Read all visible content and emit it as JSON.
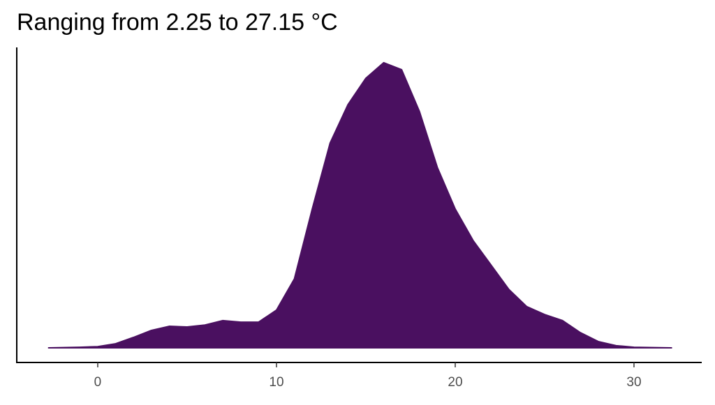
{
  "chart_data": {
    "type": "density",
    "title": "Ranging from 2.25 to 27.15 °C",
    "color": "#4a1060",
    "x": [
      -2.75,
      -1,
      0,
      1,
      2,
      3,
      4,
      5,
      6,
      7,
      8,
      9,
      10,
      11,
      12,
      13,
      14,
      15,
      16,
      17,
      18,
      19,
      20,
      21,
      22,
      23,
      24,
      25,
      26,
      27,
      28,
      29,
      30,
      32.1
    ],
    "values": [
      0,
      0.0002,
      0.0004,
      0.0013,
      0.0033,
      0.0055,
      0.0068,
      0.0066,
      0.0072,
      0.0086,
      0.0081,
      0.0081,
      0.0119,
      0.0217,
      0.0437,
      0.0645,
      0.0766,
      0.0849,
      0.0898,
      0.0876,
      0.0744,
      0.0568,
      0.0437,
      0.0338,
      0.0261,
      0.0184,
      0.013,
      0.0105,
      0.0086,
      0.0048,
      0.002,
      0.0007,
      0.0002,
      0
    ],
    "xlim": [
      -4.53,
      33.79
    ],
    "xticks": [
      0,
      10,
      20,
      30
    ],
    "ylim": [
      -0.0046,
      0.0946
    ]
  }
}
